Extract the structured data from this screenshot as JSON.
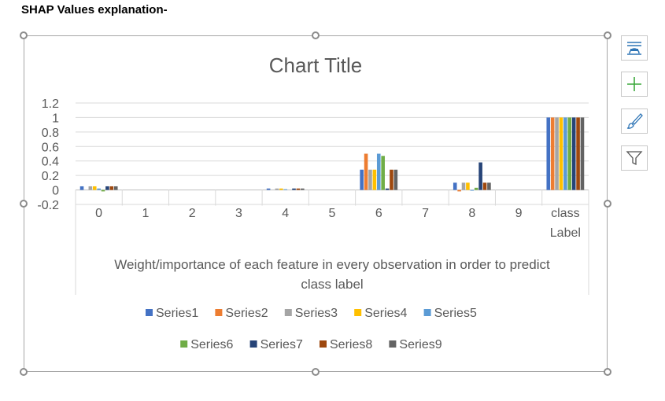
{
  "page": {
    "heading": "SHAP Values explanation-"
  },
  "chart_data": {
    "type": "bar",
    "title": "Chart Title",
    "xlabel": "Weight/importance of each feature in every observation in order to predict class label",
    "xlabel_lines": [
      "Weight/importance of each feature in every observation in order to predict",
      "class label"
    ],
    "ylabel": "",
    "ylim": [
      -0.2,
      1.2
    ],
    "ytick_step": 0.2,
    "ytick_labels": [
      "1.2",
      "1",
      "0.8",
      "0.6",
      "0.4",
      "0.2",
      "0",
      "-0.2"
    ],
    "grid": true,
    "legend_position": "bottom",
    "categories": [
      "0",
      "1",
      "2",
      "3",
      "4",
      "5",
      "6",
      "7",
      "8",
      "9",
      "class Label"
    ],
    "category_lines": [
      [
        "0"
      ],
      [
        "1"
      ],
      [
        "2"
      ],
      [
        "3"
      ],
      [
        "4"
      ],
      [
        "5"
      ],
      [
        "6"
      ],
      [
        "7"
      ],
      [
        "8"
      ],
      [
        "9"
      ],
      [
        "class",
        "Label"
      ]
    ],
    "series": [
      {
        "name": "Series1",
        "color": "#4472C4",
        "values": [
          0.05,
          0,
          0,
          0,
          0.02,
          0,
          0.28,
          0,
          0.1,
          0,
          1
        ]
      },
      {
        "name": "Series2",
        "color": "#ED7D31",
        "values": [
          0,
          0,
          0,
          0,
          0,
          0,
          0.5,
          0,
          -0.02,
          0,
          1
        ]
      },
      {
        "name": "Series3",
        "color": "#A5A5A5",
        "values": [
          0.05,
          0,
          0,
          0,
          0.02,
          0,
          0.28,
          0,
          0.1,
          0,
          1
        ]
      },
      {
        "name": "Series4",
        "color": "#FFC000",
        "values": [
          0.05,
          0,
          0,
          0,
          0.02,
          0,
          0.28,
          0,
          0.1,
          0,
          1
        ]
      },
      {
        "name": "Series5",
        "color": "#5B9BD5",
        "values": [
          0.02,
          0,
          0,
          0,
          0.01,
          0,
          0.5,
          0,
          -0.01,
          0,
          1
        ]
      },
      {
        "name": "Series6",
        "color": "#70AD47",
        "values": [
          -0.02,
          0,
          0,
          0,
          0,
          0,
          0.47,
          0,
          0.03,
          0,
          1
        ]
      },
      {
        "name": "Series7",
        "color": "#264478",
        "values": [
          0.05,
          0,
          0,
          0,
          0.02,
          0,
          0.02,
          0,
          0.38,
          0,
          1
        ]
      },
      {
        "name": "Series8",
        "color": "#9E480E",
        "values": [
          0.05,
          0,
          0,
          0,
          0.02,
          0,
          0.28,
          0,
          0.1,
          0,
          1
        ]
      },
      {
        "name": "Series9",
        "color": "#636363",
        "values": [
          0.05,
          0,
          0,
          0,
          0.02,
          0,
          0.28,
          0,
          0.1,
          0,
          1
        ]
      }
    ]
  },
  "side_tools": [
    {
      "name": "chart-layout-icon",
      "color": "#2E75B6"
    },
    {
      "name": "plus-icon",
      "color": "#3CA83C"
    },
    {
      "name": "brush-icon",
      "color": "#2E75B6"
    },
    {
      "name": "filter-icon",
      "color": "#555555"
    }
  ]
}
